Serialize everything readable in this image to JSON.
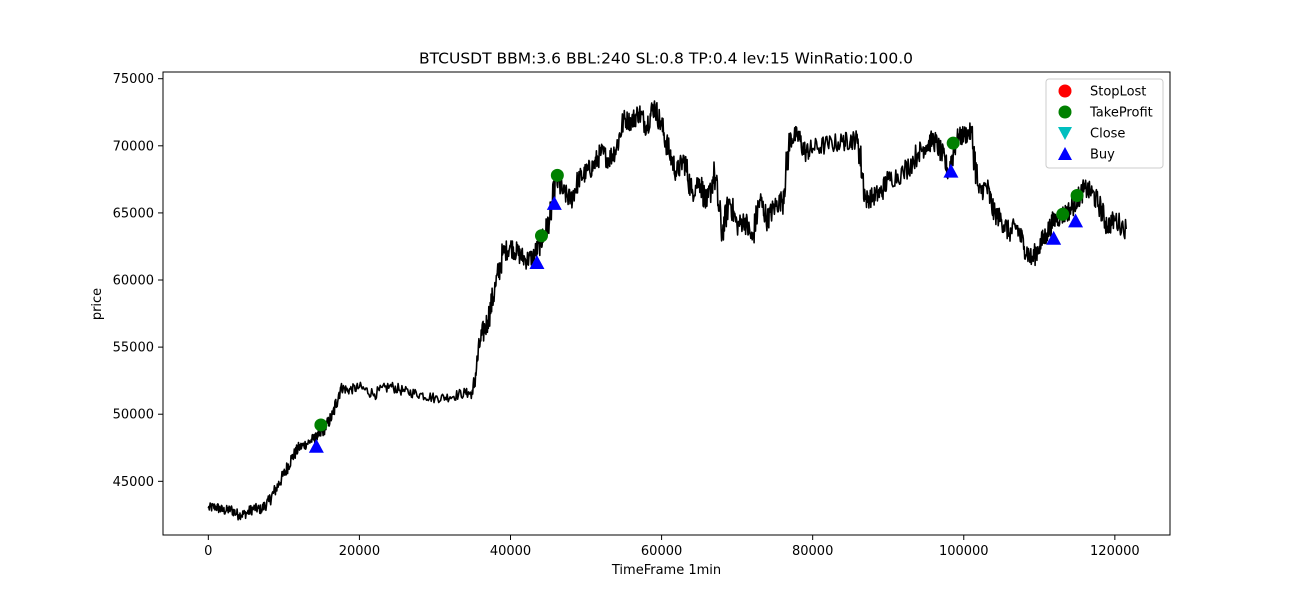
{
  "chart_data": {
    "type": "line",
    "title": "BTCUSDT BBM:3.6 BBL:240 SL:0.8 TP:0.4 lev:15 WinRatio:100.0",
    "xlabel": "TimeFrame 1min",
    "ylabel": "price",
    "xlim": [
      -6000,
      127300
    ],
    "ylim": [
      41000,
      75500
    ],
    "xticks": [
      0,
      20000,
      40000,
      60000,
      80000,
      100000,
      120000
    ],
    "xtick_labels": [
      "0",
      "20000",
      "40000",
      "60000",
      "80000",
      "100000",
      "120000"
    ],
    "yticks": [
      45000,
      50000,
      55000,
      60000,
      65000,
      70000,
      75000
    ],
    "ytick_labels": [
      "45000",
      "50000",
      "55000",
      "60000",
      "65000",
      "70000",
      "75000"
    ],
    "grid": false,
    "legend_position": "top-right",
    "legend": [
      {
        "label": "StopLost",
        "color": "#ff0000",
        "marker": "circle"
      },
      {
        "label": "TakeProfit",
        "color": "#008000",
        "marker": "circle"
      },
      {
        "label": "Close",
        "color": "#00bfbf",
        "marker": "triangle-down"
      },
      {
        "label": "Buy",
        "color": "#0000ff",
        "marker": "triangle-up"
      }
    ],
    "series": [
      {
        "color": "#000000",
        "x": [
          0,
          1000,
          2000,
          3000,
          4000,
          5000,
          6000,
          7000,
          8000,
          9000,
          10000,
          11000,
          12000,
          13000,
          14000,
          14500,
          15500,
          16500,
          17500,
          18500,
          20000,
          22000,
          24000,
          26000,
          28000,
          30000,
          32000,
          34000,
          35000,
          36000,
          37000,
          38000,
          39000,
          40000,
          41000,
          42000,
          43000,
          44000,
          44500,
          45200,
          46000,
          47000,
          48000,
          49000,
          50000,
          51000,
          52000,
          53000,
          54000,
          55000,
          56000,
          57000,
          58000,
          59000,
          60000,
          61000,
          62000,
          63000,
          64000,
          65000,
          66000,
          67000,
          68000,
          69000,
          70000,
          71000,
          72000,
          73000,
          74000,
          75000,
          76000,
          77000,
          78000,
          79000,
          80000,
          82000,
          84000,
          85000,
          86000,
          87000,
          88000,
          89000,
          90000,
          92000,
          94000,
          95000,
          96000,
          97000,
          98000,
          99000,
          100000,
          101000,
          102000,
          103000,
          104000,
          105000,
          106000,
          107000,
          108000,
          109000,
          110000,
          111000,
          112000,
          113000,
          114000,
          115000,
          116000,
          117000,
          118000,
          119000,
          120000,
          121500
        ],
        "y": [
          43000,
          43100,
          42800,
          42900,
          42500,
          42600,
          43000,
          42900,
          43500,
          44500,
          45500,
          46700,
          47500,
          47800,
          48200,
          48300,
          49000,
          50000,
          52000,
          51800,
          52000,
          51500,
          52100,
          51700,
          51500,
          51200,
          51300,
          51600,
          51500,
          55500,
          57000,
          59500,
          62000,
          62500,
          62000,
          61500,
          61700,
          62800,
          63500,
          64500,
          67500,
          66500,
          66000,
          67500,
          68000,
          68500,
          69500,
          69000,
          69800,
          72000,
          71800,
          72500,
          71500,
          73000,
          71500,
          69500,
          68000,
          69000,
          66500,
          67500,
          65500,
          68000,
          63500,
          66000,
          64000,
          64500,
          63000,
          66000,
          64500,
          65500,
          66000,
          70500,
          70800,
          69500,
          69800,
          70100,
          70300,
          70400,
          70500,
          66000,
          66200,
          66500,
          67500,
          68000,
          69500,
          70000,
          70500,
          69500,
          68000,
          70500,
          70800,
          71000,
          66500,
          67000,
          65000,
          64500,
          63500,
          64000,
          62500,
          61500,
          62500,
          63500,
          64500,
          64800,
          65200,
          66000,
          66800,
          66500,
          65500,
          64000,
          64500,
          63800
        ]
      }
    ],
    "events": {
      "take_profit": [
        {
          "x": 14900,
          "y": 49200
        },
        {
          "x": 44100,
          "y": 63300
        },
        {
          "x": 46200,
          "y": 67800
        },
        {
          "x": 98600,
          "y": 70200
        },
        {
          "x": 113100,
          "y": 64900
        },
        {
          "x": 115000,
          "y": 66300
        }
      ],
      "buy": [
        {
          "x": 14300,
          "y": 47600
        },
        {
          "x": 43500,
          "y": 61300
        },
        {
          "x": 45800,
          "y": 65700
        },
        {
          "x": 98300,
          "y": 68100
        },
        {
          "x": 111900,
          "y": 63100
        },
        {
          "x": 114800,
          "y": 64400
        }
      ],
      "stop_lost": [],
      "close": []
    }
  }
}
